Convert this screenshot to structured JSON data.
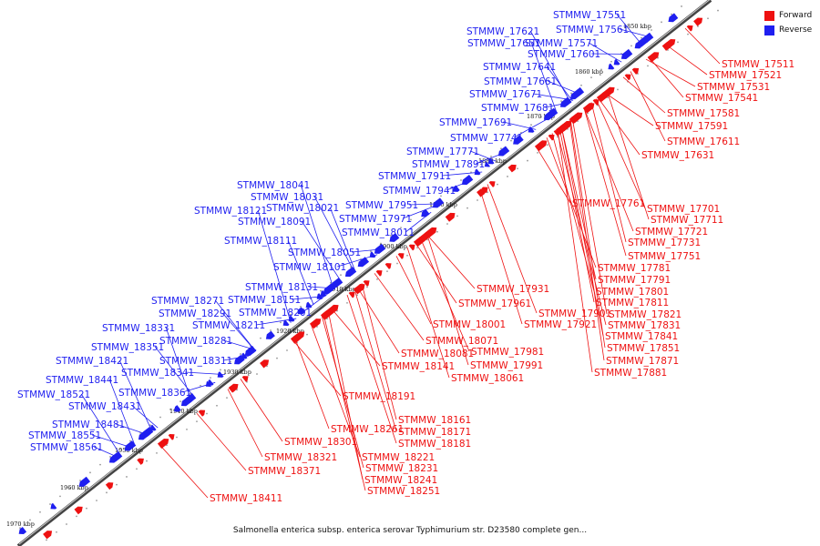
{
  "legend": {
    "forward_label": "Forward",
    "reverse_label": "Reverse",
    "forward_color": "#ee1111",
    "reverse_color": "#1f1ff0"
  },
  "caption": "Salmonella enterica subsp. enterica serovar Typhimurium str. D23580 complete gen...",
  "scale_labels": [
    "1850 kbp",
    "1860 kbp",
    "1870 kbp",
    "1880 kbp",
    "1890 kbp",
    "1900 kbp",
    "1910 kbp",
    "1920 kbp",
    "1930 kbp",
    "1940 kbp",
    "1950 kbp",
    "1960 kbp",
    "1970 kbp"
  ],
  "reverse_genes": [
    "STMMW_17551",
    "STMMW_17561",
    "STMMW_17621",
    "STMMW_17651",
    "STMMW_17571",
    "STMMW_17601",
    "STMMW_17641",
    "STMMW_17661",
    "STMMW_17671",
    "STMMW_17681",
    "STMMW_17691",
    "STMMW_17741",
    "STMMW_17771",
    "STMMW_17891",
    "STMMW_17911",
    "STMMW_17941",
    "STMMW_17951",
    "STMMW_17971",
    "STMMW_18011",
    "STMMW_18041",
    "STMMW_18031",
    "STMMW_18021",
    "STMMW_18121",
    "STMMW_18091",
    "STMMW_18111",
    "STMMW_18051",
    "STMMW_18101",
    "STMMW_18131",
    "STMMW_18151",
    "STMMW_18271",
    "STMMW_18201",
    "STMMW_18291",
    "STMMW_18211",
    "STMMW_18331",
    "STMMW_18281",
    "STMMW_18351",
    "STMMW_18311",
    "STMMW_18421",
    "STMMW_18341",
    "STMMW_18441",
    "STMMW_18361",
    "STMMW_18521",
    "STMMW_18431",
    "STMMW_18481",
    "STMMW_18551",
    "STMMW_18561"
  ],
  "forward_genes": [
    "STMMW_17511",
    "STMMW_17521",
    "STMMW_17531",
    "STMMW_17541",
    "STMMW_17581",
    "STMMW_17591",
    "STMMW_17611",
    "STMMW_17631",
    "STMMW_17701",
    "STMMW_17761",
    "STMMW_17711",
    "STMMW_17721",
    "STMMW_17731",
    "STMMW_17751",
    "STMMW_17781",
    "STMMW_17791",
    "STMMW_17801",
    "STMMW_17931",
    "STMMW_17811",
    "STMMW_17961",
    "STMMW_17901",
    "STMMW_17821",
    "STMMW_17921",
    "STMMW_17831",
    "STMMW_18001",
    "STMMW_17841",
    "STMMW_18071",
    "STMMW_17851",
    "STMMW_18081",
    "STMMW_17981",
    "STMMW_17871",
    "STMMW_17991",
    "STMMW_18141",
    "STMMW_17881",
    "STMMW_18061",
    "STMMW_18191",
    "STMMW_18161",
    "STMMW_18171",
    "STMMW_18181",
    "STMMW_18261",
    "STMMW_18301",
    "STMMW_18221",
    "STMMW_18321",
    "STMMW_18231",
    "STMMW_18371",
    "STMMW_18241",
    "STMMW_18251",
    "STMMW_18411"
  ]
}
